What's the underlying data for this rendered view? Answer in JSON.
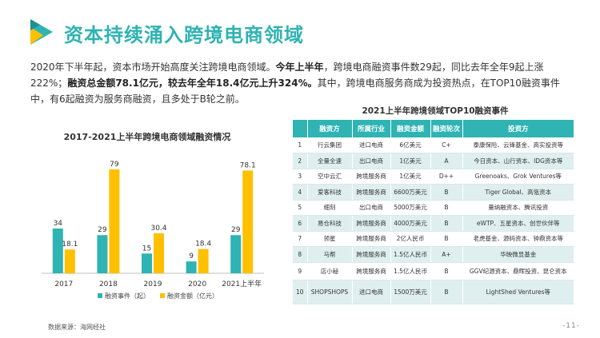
{
  "header": {
    "title": "资本持续涌入跨境电商领域"
  },
  "intro": {
    "seg1": "2020年下半年起，资本市场开始高度关注跨境电商领域。",
    "seg2": "今年上半年",
    "seg3": "，跨境电商融资事件数29起，同比去年全年9起上涨222%；",
    "seg4": "融资总金额78.1亿元，较去年全年18.4亿元上升324%。",
    "seg5": "其中，跨境电商服务商成为投资热点，在TOP10融资事件中，有6起融资为服务商融资，且多处于B轮之前。"
  },
  "chart_data": {
    "type": "bar",
    "title": "2017-2021上半年跨境电商领域融资情况",
    "categories": [
      "2017",
      "2018",
      "2019",
      "2020",
      "2021上半年"
    ],
    "series": [
      {
        "name": "融资事件（起）",
        "values": [
          34,
          29,
          15,
          9,
          29
        ],
        "color": "#2fb3b3"
      },
      {
        "name": "融资金额（亿元）",
        "values": [
          18.1,
          79,
          30.4,
          18.4,
          78.1
        ],
        "color": "#ffc000"
      }
    ],
    "ylim": [
      0,
      85
    ],
    "grid": false,
    "legend": "bottom",
    "labels": {
      "s1": [
        "34",
        "29",
        "15",
        "9",
        "29"
      ],
      "s2": [
        "18.1",
        "79",
        "30.4",
        "18.4",
        "78.1"
      ]
    }
  },
  "table": {
    "title": "2021上半年跨境领域TOP10融资事件",
    "headers": [
      "融资方",
      "所属行业",
      "融资金额",
      "融资轮次",
      "投资方"
    ],
    "rows": [
      {
        "no": "1",
        "company": "行云集团",
        "industry": "进口电商",
        "amount": "6亿美元",
        "round": "C+",
        "investors": "泰康保险、云锋基金、高实投资等"
      },
      {
        "no": "2",
        "company": "全量全速",
        "industry": "出口电商",
        "amount": "1亿美元",
        "round": "A",
        "investors": "今日资本、山行资本、IDG资本等"
      },
      {
        "no": "3",
        "company": "空中云汇",
        "industry": "跨境服务商",
        "amount": "1亿美元",
        "round": "D++",
        "investors": "Greenoaks、Grok Ventures等"
      },
      {
        "no": "4",
        "company": "爱客科技",
        "industry": "跨境服务商",
        "amount": "6600万美元",
        "round": "B",
        "investors": "Tiger Global、高瓴资本"
      },
      {
        "no": "5",
        "company": "细刻",
        "industry": "出口电商",
        "amount": "5000万美元",
        "round": "B",
        "investors": "量纳融资本、腾讯投资"
      },
      {
        "no": "6",
        "company": "易仓科技",
        "industry": "跨境服务商",
        "amount": "4000万美元",
        "round": "B",
        "investors": "eWTP、五星资本、创世伙伴等"
      },
      {
        "no": "7",
        "company": "领星",
        "industry": "跨境服务商",
        "amount": "2亿人民币",
        "round": "B",
        "investors": "老虎基金、源码资本、钟鼎资本等"
      },
      {
        "no": "8",
        "company": "马帮",
        "industry": "跨境服务商",
        "amount": "1.5亿人民币",
        "round": "A+",
        "investors": "华映微显基金"
      },
      {
        "no": "9",
        "company": "店小秘",
        "industry": "跨境服务商",
        "amount": "1.5亿人民币",
        "round": "B",
        "investors": "GGV纪源资本、鼎晖投资、昆仑资本"
      },
      {
        "no": "10",
        "company": "SHOPSHOPS",
        "industry": "进口电商",
        "amount": "1500万美元",
        "round": "B",
        "investors": "LightShed Ventures等"
      }
    ]
  },
  "footer": {
    "source": "数据来源：海网经社",
    "page": "-11-"
  },
  "colors": {
    "accent": "#2fb3b3",
    "secondary": "#ffc000",
    "logo_teal": "#2fb3b3",
    "logo_yellow": "#ffc000"
  }
}
